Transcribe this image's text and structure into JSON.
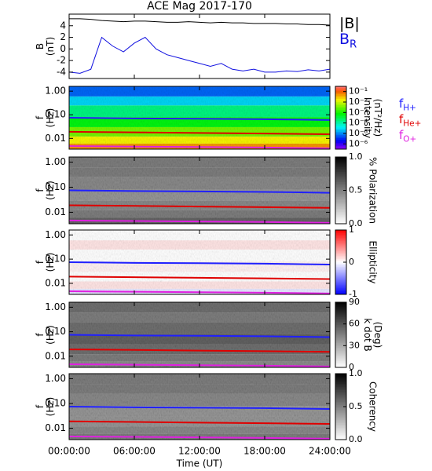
{
  "chart_data": [
    {
      "type": "line",
      "title": "ACE Mag 2017-170",
      "ylabel": [
        "B",
        "(nT)"
      ],
      "x": [
        0,
        1,
        2,
        3,
        4,
        5,
        6,
        7,
        8,
        9,
        10,
        11,
        12,
        13,
        14,
        15,
        16,
        17,
        18,
        19,
        20,
        21,
        22,
        23,
        24
      ],
      "ylim": [
        -5.1,
        6
      ],
      "yticks": [
        -4,
        -2,
        0,
        2,
        4
      ],
      "series": [
        {
          "name": "|B|",
          "color": "#000000",
          "values": [
            5.2,
            5.2,
            5.1,
            4.9,
            4.8,
            4.7,
            4.8,
            4.8,
            4.7,
            4.6,
            4.6,
            4.7,
            4.6,
            4.5,
            4.6,
            4.5,
            4.5,
            4.4,
            4.4,
            4.4,
            4.3,
            4.3,
            4.2,
            4.2,
            4.1
          ]
        },
        {
          "name": "B",
          "subscript": "R",
          "color": "#1010e0",
          "values": [
            -4,
            -4.2,
            -3.5,
            2,
            0.5,
            -0.5,
            1,
            2,
            0,
            -1,
            -1.5,
            -2,
            -2.5,
            -3,
            -2.5,
            -3.5,
            -3.8,
            -3.5,
            -4,
            -4,
            -3.8,
            -3.9,
            -3.6,
            -3.8,
            -3.5
          ]
        }
      ]
    },
    {
      "type": "heatmap",
      "ylabel": [
        "f",
        "(Hz)"
      ],
      "log_y": true,
      "ylim": [
        0.0035,
        1.6
      ],
      "yticks": [
        {
          "value": 0.01,
          "label": "0.01"
        },
        {
          "value": 0.1,
          "label": "0.10"
        },
        {
          "value": 1,
          "label": "1.00"
        }
      ],
      "y_edges": [
        0.0035,
        0.006,
        0.012,
        0.03,
        0.08,
        0.25,
        0.6,
        1.6
      ],
      "z": [
        -1.3,
        -1.8,
        -2.5,
        -3.2,
        -3.8,
        -4.6,
        -5.2
      ],
      "colormap": "rainbow",
      "zlim": [
        -6.5,
        -0.5
      ],
      "colorbar_label": [
        "Intensity",
        "(nT²/Hz)"
      ],
      "zticks": [
        {
          "value": -6,
          "label": "10⁻⁶"
        },
        {
          "value": -5,
          "label": "10⁻⁵"
        },
        {
          "value": -4,
          "label": "10⁻⁴"
        },
        {
          "value": -3,
          "label": "10⁻³"
        },
        {
          "value": -2,
          "label": "10⁻²"
        },
        {
          "value": -1,
          "label": "10⁻¹"
        }
      ],
      "legend": "right",
      "x": [
        0,
        6,
        12,
        18,
        24
      ],
      "series": [
        {
          "name": "f",
          "subscript": "H+",
          "color": "#2020ff",
          "values": [
            0.075,
            0.07,
            0.068,
            0.065,
            0.06
          ]
        },
        {
          "name": "f",
          "subscript": "He+",
          "color": "#e00000",
          "values": [
            0.019,
            0.018,
            0.017,
            0.016,
            0.015
          ]
        },
        {
          "name": "f",
          "subscript": "O+",
          "color": "#e020e0",
          "values": [
            0.0047,
            0.0045,
            0.0043,
            0.0041,
            0.0038
          ]
        }
      ]
    },
    {
      "type": "heatmap",
      "ylabel": [
        "f",
        "(Hz)"
      ],
      "log_y": true,
      "ylim": [
        0.0035,
        1.6
      ],
      "yticks": [
        {
          "value": 0.01,
          "label": "0.01"
        },
        {
          "value": 0.1,
          "label": "0.10"
        },
        {
          "value": 1,
          "label": "1.00"
        }
      ],
      "y_edges": [
        0.0035,
        0.006,
        0.012,
        0.03,
        0.08,
        0.25,
        0.6,
        1.6
      ],
      "z": [
        0.6,
        0.5,
        0.45,
        0.4,
        0.45,
        0.5,
        0.5
      ],
      "colormap": "gray",
      "zlim": [
        0,
        1
      ],
      "colorbar_label": [
        "% Polarization"
      ],
      "zticks": [
        {
          "value": 0,
          "label": "0.0"
        },
        {
          "value": 0.5,
          "label": "0.5"
        },
        {
          "value": 1,
          "label": "1.0"
        }
      ],
      "x": [
        0,
        6,
        12,
        18,
        24
      ],
      "series": [
        {
          "color": "#2020ff",
          "values": [
            0.075,
            0.07,
            0.068,
            0.065,
            0.06
          ]
        },
        {
          "color": "#e00000",
          "values": [
            0.019,
            0.018,
            0.017,
            0.016,
            0.015
          ]
        },
        {
          "color": "#e020e0",
          "values": [
            0.0047,
            0.0045,
            0.0043,
            0.0041,
            0.0038
          ]
        }
      ]
    },
    {
      "type": "heatmap",
      "ylabel": [
        "f",
        "(Hz)"
      ],
      "log_y": true,
      "ylim": [
        0.0035,
        1.6
      ],
      "yticks": [
        {
          "value": 0.01,
          "label": "0.01"
        },
        {
          "value": 0.1,
          "label": "0.10"
        },
        {
          "value": 1,
          "label": "1.00"
        }
      ],
      "y_edges": [
        0.0035,
        0.006,
        0.012,
        0.03,
        0.08,
        0.25,
        0.6,
        1.6
      ],
      "z": [
        -0.1,
        0.1,
        0,
        0.05,
        0,
        0.1,
        0
      ],
      "colormap": "bwr",
      "zlim": [
        -1,
        1
      ],
      "colorbar_label": [
        "Ellipticity"
      ],
      "zticks": [
        -1,
        0,
        1
      ],
      "x": [
        0,
        6,
        12,
        18,
        24
      ],
      "series": [
        {
          "color": "#2020ff",
          "values": [
            0.075,
            0.07,
            0.068,
            0.065,
            0.06
          ]
        },
        {
          "color": "#e00000",
          "values": [
            0.019,
            0.018,
            0.017,
            0.016,
            0.015
          ]
        },
        {
          "color": "#e020e0",
          "values": [
            0.0047,
            0.0045,
            0.0043,
            0.0041,
            0.0038
          ]
        }
      ]
    },
    {
      "type": "heatmap",
      "ylabel": [
        "f",
        "(Hz)"
      ],
      "log_y": true,
      "ylim": [
        0.0035,
        1.6
      ],
      "yticks": [
        {
          "value": 0.01,
          "label": "0.01"
        },
        {
          "value": 0.1,
          "label": "0.10"
        },
        {
          "value": 1,
          "label": "1.00"
        }
      ],
      "y_edges": [
        0.0035,
        0.006,
        0.012,
        0.03,
        0.08,
        0.25,
        0.6,
        1.6
      ],
      "z": [
        40,
        45,
        50,
        55,
        50,
        45,
        50
      ],
      "colormap": "gray",
      "zlim": [
        0,
        90
      ],
      "colorbar_label": [
        "k dot B",
        "(Deg)"
      ],
      "zticks": [
        0,
        30,
        60,
        90
      ],
      "x": [
        0,
        6,
        12,
        18,
        24
      ],
      "series": [
        {
          "color": "#2020ff",
          "values": [
            0.075,
            0.07,
            0.068,
            0.065,
            0.06
          ]
        },
        {
          "color": "#e00000",
          "values": [
            0.019,
            0.018,
            0.017,
            0.016,
            0.015
          ]
        },
        {
          "color": "#e020e0",
          "values": [
            0.0047,
            0.0045,
            0.0043,
            0.0041,
            0.0038
          ]
        }
      ]
    },
    {
      "type": "heatmap",
      "ylabel": [
        "f",
        "(Hz)"
      ],
      "log_y": true,
      "ylim": [
        0.0035,
        1.6
      ],
      "yticks": [
        {
          "value": 0.01,
          "label": "0.01"
        },
        {
          "value": 0.1,
          "label": "0.10"
        },
        {
          "value": 1,
          "label": "1.00"
        }
      ],
      "y_edges": [
        0.0035,
        0.006,
        0.012,
        0.03,
        0.08,
        0.25,
        0.6,
        1.6
      ],
      "z": [
        0.5,
        0.45,
        0.4,
        0.4,
        0.45,
        0.5,
        0.5
      ],
      "colormap": "gray",
      "zlim": [
        0,
        1
      ],
      "colorbar_label": [
        "Coherency"
      ],
      "zticks": [
        {
          "value": 0,
          "label": "0.0"
        },
        {
          "value": 0.5,
          "label": "0.5"
        },
        {
          "value": 1,
          "label": "1.0"
        }
      ],
      "x": [
        0,
        6,
        12,
        18,
        24
      ],
      "xlim": [
        0,
        24
      ],
      "xlabel": "Time (UT)",
      "xticks": [
        {
          "value": 0,
          "label": "00:00:00"
        },
        {
          "value": 6,
          "label": "06:00:00"
        },
        {
          "value": 12,
          "label": "12:00:00"
        },
        {
          "value": 18,
          "label": "18:00:00"
        },
        {
          "value": 24,
          "label": "24:00:00"
        }
      ],
      "series": [
        {
          "color": "#2020ff",
          "values": [
            0.075,
            0.07,
            0.068,
            0.065,
            0.06
          ]
        },
        {
          "color": "#e00000",
          "values": [
            0.019,
            0.018,
            0.017,
            0.016,
            0.015
          ]
        },
        {
          "color": "#e020e0",
          "values": [
            0.0047,
            0.0045,
            0.0043,
            0.0041,
            0.0038
          ]
        }
      ]
    }
  ]
}
